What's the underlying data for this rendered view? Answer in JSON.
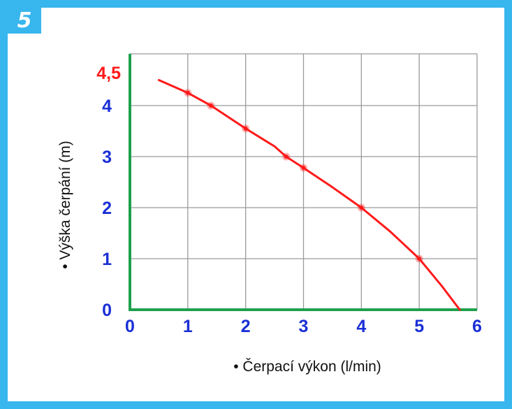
{
  "figure_number": "5",
  "chart_data": {
    "type": "line",
    "xlabel": "• Čerpací výkon (l/min)",
    "ylabel": "• Výška čerpání (m)",
    "xlim": [
      0,
      6
    ],
    "ylim": [
      0,
      4.5
    ],
    "grid": true,
    "x_ticks": [
      "0",
      "1",
      "2",
      "3",
      "4",
      "5",
      "6"
    ],
    "y_ticks": [
      "0",
      "1",
      "2",
      "3",
      "4",
      "4,5"
    ],
    "highlight_tick_color": "#ff1a1a",
    "tick_color": "#1b2fd6",
    "axis_color": "#1ea04c",
    "grid_color": "#9a9a9a",
    "series": [
      {
        "color": "#ff1a1a",
        "x": [
          0.5,
          1.0,
          1.4,
          2.0,
          2.5,
          2.7,
          3.0,
          3.5,
          4.0,
          4.5,
          5.0,
          5.4,
          5.7
        ],
        "y": [
          4.5,
          4.25,
          4.0,
          3.55,
          3.2,
          3.0,
          2.78,
          2.4,
          2.0,
          1.53,
          1.0,
          0.45,
          0.0
        ],
        "markers_x": [
          1.0,
          1.4,
          2.0,
          2.7,
          3.0,
          4.0,
          5.0
        ],
        "markers_y": [
          4.25,
          4.0,
          3.55,
          3.0,
          2.78,
          2.0,
          1.0
        ]
      }
    ]
  }
}
